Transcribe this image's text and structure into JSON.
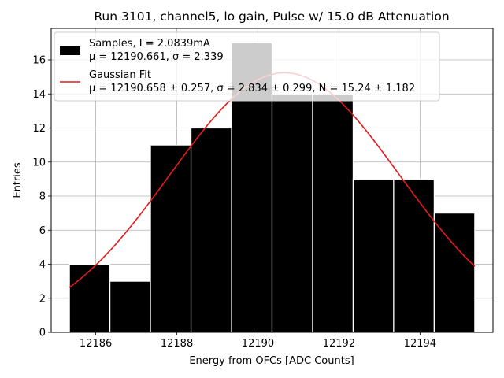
{
  "chart_data": {
    "type": "bar",
    "title": "Run 3101, channel5, lo gain, Pulse w/ 15.0 dB Attenuation",
    "xlabel": "Energy from OFCs [ADC Counts]",
    "ylabel": "Entries",
    "xlim": [
      12184.9,
      12195.8
    ],
    "ylim": [
      0,
      17.85
    ],
    "xticks": [
      12186,
      12188,
      12190,
      12192,
      12194
    ],
    "yticks": [
      0,
      2,
      4,
      6,
      8,
      10,
      12,
      14,
      16
    ],
    "grid": true,
    "legend_position": "top-left",
    "bins": [
      {
        "left": 12185.35,
        "right": 12186.35,
        "count": 4
      },
      {
        "left": 12186.35,
        "right": 12187.35,
        "count": 3
      },
      {
        "left": 12187.35,
        "right": 12188.35,
        "count": 11
      },
      {
        "left": 12188.35,
        "right": 12189.35,
        "count": 12
      },
      {
        "left": 12189.35,
        "right": 12190.35,
        "count": 17
      },
      {
        "left": 12190.35,
        "right": 12191.35,
        "count": 14
      },
      {
        "left": 12191.35,
        "right": 12192.35,
        "count": 14
      },
      {
        "left": 12192.35,
        "right": 12193.35,
        "count": 9
      },
      {
        "left": 12193.35,
        "right": 12194.35,
        "count": 9
      },
      {
        "left": 12194.35,
        "right": 12195.35,
        "count": 7
      }
    ],
    "series": [
      {
        "name": "Samples, I = 2.0839mA",
        "stats": "μ = 12190.661, σ = 2.339",
        "color": "#000000",
        "kind": "histogram"
      },
      {
        "name": "Gaussian Fit",
        "stats": "μ = 12190.658 ± 0.257, σ = 2.834 ± 0.299, N = 15.24 ± 1.182",
        "color": "#e41a1c",
        "kind": "line",
        "fit": {
          "mu": 12190.658,
          "sigma": 2.834,
          "N": 15.24
        },
        "x_range": [
          12185.35,
          12195.35
        ]
      }
    ]
  }
}
